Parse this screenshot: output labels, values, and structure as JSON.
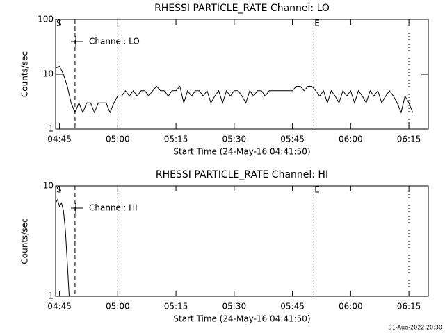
{
  "chart_data": [
    {
      "type": "line",
      "title": "RHESSI PARTICLE_RATE Channel: LO",
      "ylabel": "Counts/sec",
      "xlabel": "Start Time (24-May-16 04:41:50)",
      "log_y": true,
      "ylim": [
        1,
        100
      ],
      "yticks": [
        1,
        10,
        100
      ],
      "xlim": [
        284,
        380
      ],
      "xticks": [
        {
          "value": 285,
          "label": "04:45"
        },
        {
          "value": 300,
          "label": "05:00"
        },
        {
          "value": 315,
          "label": "05:15"
        },
        {
          "value": 330,
          "label": "05:30"
        },
        {
          "value": 345,
          "label": "05:45"
        },
        {
          "value": 360,
          "label": "06:00"
        },
        {
          "value": 375,
          "label": "06:15"
        }
      ],
      "legend": "upper-left",
      "vlines": [
        {
          "x": 289,
          "style": "dashed"
        },
        {
          "x": 300,
          "style": "dotted"
        },
        {
          "x": 350.5,
          "style": "dotted"
        },
        {
          "x": 375,
          "style": "dotted"
        }
      ],
      "annotations": [
        {
          "text": "S",
          "x": 284
        },
        {
          "text": "E",
          "x": 350.5
        }
      ],
      "x": [
        284,
        285,
        286,
        287,
        288,
        289,
        290,
        291,
        292,
        293,
        294,
        295,
        296,
        297,
        298,
        299,
        300,
        301,
        302,
        303,
        304,
        305,
        306,
        307,
        308,
        309,
        310,
        311,
        312,
        313,
        314,
        315,
        316,
        317,
        318,
        319,
        320,
        321,
        322,
        323,
        324,
        325,
        326,
        327,
        328,
        329,
        330,
        331,
        332,
        333,
        334,
        335,
        336,
        337,
        338,
        339,
        340,
        341,
        342,
        343,
        344,
        345,
        346,
        347,
        348,
        349,
        350,
        351,
        352,
        353,
        354,
        355,
        356,
        357,
        358,
        359,
        360,
        361,
        362,
        363,
        364,
        365,
        366,
        367,
        368,
        369,
        370,
        371,
        372,
        373,
        374,
        375,
        376
      ],
      "series": [
        {
          "name": "Channel: LO",
          "color": "#000000",
          "values": [
            13,
            14,
            10,
            6,
            3,
            2,
            3,
            2,
            3,
            3,
            2,
            3,
            3,
            3,
            2,
            3,
            4,
            4,
            5,
            4,
            5,
            4,
            5,
            5,
            4,
            5,
            6,
            5,
            5,
            4,
            5,
            5,
            6,
            3,
            5,
            4,
            5,
            5,
            4,
            5,
            3,
            4,
            5,
            3,
            5,
            4,
            5,
            5,
            4,
            3,
            5,
            4,
            5,
            5,
            4,
            5,
            5,
            5,
            5,
            5,
            5,
            5,
            6,
            6,
            5,
            6,
            6,
            5,
            4,
            5,
            3,
            5,
            4,
            3,
            5,
            4,
            5,
            3,
            5,
            4,
            3,
            5,
            4,
            5,
            3,
            4,
            5,
            4,
            3,
            2,
            4,
            3,
            2
          ]
        }
      ]
    },
    {
      "type": "line",
      "title": "RHESSI PARTICLE_RATE Channel: HI",
      "ylabel": "Counts/sec",
      "xlabel": "Start Time (24-May-16 04:41:50)",
      "log_y": true,
      "ylim": [
        1,
        10
      ],
      "yticks": [
        1,
        10
      ],
      "xlim": [
        284,
        380
      ],
      "xticks": [
        {
          "value": 285,
          "label": "04:45"
        },
        {
          "value": 300,
          "label": "05:00"
        },
        {
          "value": 315,
          "label": "05:15"
        },
        {
          "value": 330,
          "label": "05:30"
        },
        {
          "value": 345,
          "label": "05:45"
        },
        {
          "value": 360,
          "label": "06:00"
        },
        {
          "value": 375,
          "label": "06:15"
        }
      ],
      "legend": "upper-left",
      "vlines": [
        {
          "x": 289,
          "style": "dashed"
        },
        {
          "x": 300,
          "style": "dotted"
        },
        {
          "x": 350.5,
          "style": "dotted"
        },
        {
          "x": 375,
          "style": "dotted"
        }
      ],
      "annotations": [
        {
          "text": "S",
          "x": 284
        },
        {
          "text": "E",
          "x": 350.5
        }
      ],
      "x": [
        284,
        284.5,
        285,
        285.5,
        286,
        286.5,
        287,
        287.5
      ],
      "series": [
        {
          "name": "Channel: HI",
          "color": "#000000",
          "values": [
            7,
            7.5,
            6.5,
            7,
            6,
            4,
            2,
            1
          ]
        }
      ]
    }
  ],
  "timestamp": "31-Aug-2022 20:30"
}
